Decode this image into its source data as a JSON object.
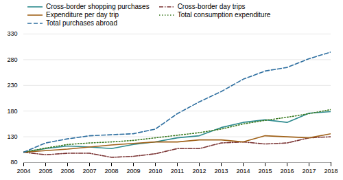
{
  "chart_data": {
    "type": "line",
    "x": [
      2004,
      2005,
      2006,
      2007,
      2008,
      2009,
      2010,
      2011,
      2012,
      2013,
      2014,
      2015,
      2016,
      2017,
      2018
    ],
    "series": [
      {
        "name": "Cross-border shopping purchases",
        "color": "#2e8b8e",
        "line_style": "solid",
        "values": [
          100,
          107,
          112,
          110,
          107,
          115,
          120,
          128,
          132,
          148,
          158,
          163,
          158,
          176,
          179
        ]
      },
      {
        "name": "Cross-border day trips",
        "color": "#7b3535",
        "line_style": "dashdot",
        "values": [
          100,
          95,
          98,
          98,
          90,
          92,
          97,
          107,
          107,
          118,
          120,
          116,
          118,
          128,
          130
        ]
      },
      {
        "name": "Expenditure per day trip",
        "color": "#a0621a",
        "line_style": "solid",
        "values": [
          100,
          103,
          106,
          110,
          114,
          117,
          120,
          120,
          124,
          124,
          120,
          132,
          130,
          128,
          136
        ]
      },
      {
        "name": "Total consumption expenditure",
        "color": "#3a7a20",
        "line_style": "dotted",
        "values": [
          100,
          108,
          115,
          118,
          120,
          123,
          128,
          133,
          138,
          145,
          155,
          162,
          168,
          175,
          183
        ]
      },
      {
        "name": "Total purchases abroad",
        "color": "#2e6fa0",
        "line_style": "dashed",
        "values": [
          100,
          118,
          126,
          132,
          134,
          136,
          145,
          175,
          198,
          218,
          242,
          258,
          265,
          282,
          295
        ]
      }
    ],
    "xlim": [
      2004,
      2018
    ],
    "xticks": [
      2004,
      2005,
      2006,
      2007,
      2008,
      2009,
      2010,
      2011,
      2012,
      2013,
      2014,
      2015,
      2016,
      2017,
      2018
    ],
    "ylim": [
      80,
      330
    ],
    "yticks": [
      80,
      130,
      180,
      230,
      280,
      330
    ],
    "grid": "y",
    "legend": "upper left"
  }
}
